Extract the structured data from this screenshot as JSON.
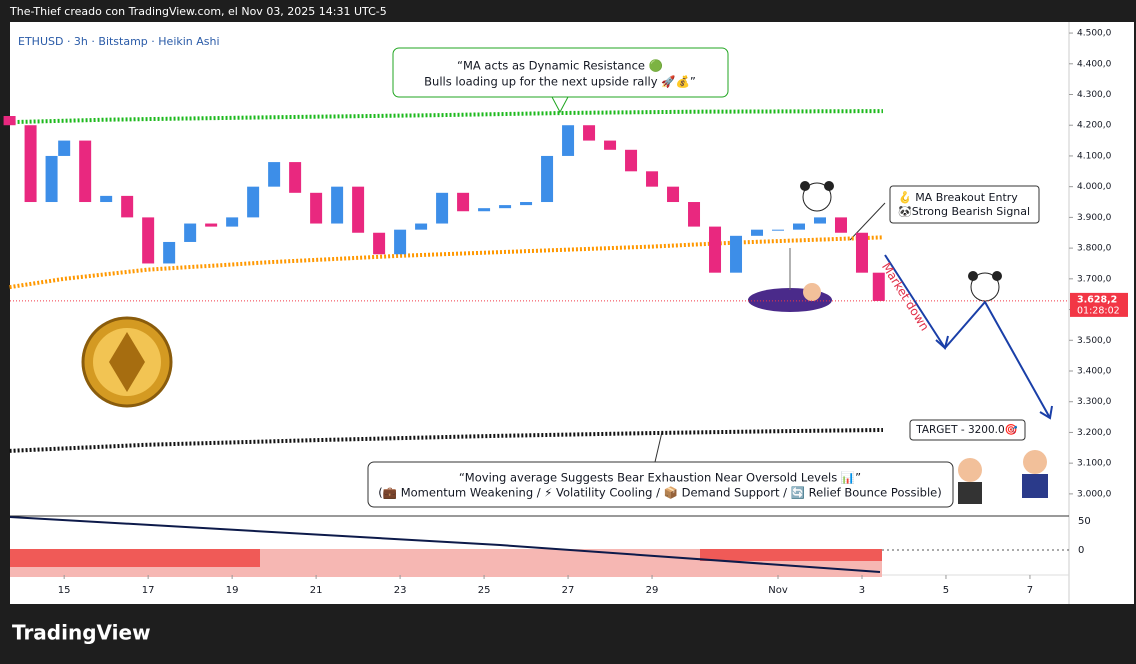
{
  "header": "The-Thief creado con TradingView.com, el Nov 03, 2025 14:31 UTC-5",
  "footer": "TradingView",
  "chart_data": {
    "type": "candlestick",
    "title": "ETHUSD · 3h · Bitstamp · Heikin Ashi",
    "x": [
      13.7,
      14.2,
      14.7,
      15,
      15.5,
      16,
      16.5,
      17,
      17.5,
      18,
      18.5,
      19,
      19.5,
      20,
      20.5,
      21,
      21.5,
      22,
      22.5,
      23,
      23.5,
      24,
      24.5,
      25,
      25.5,
      26,
      26.5,
      27,
      27.5,
      28,
      28.5,
      29,
      29.5,
      30,
      30.5,
      31,
      31.5,
      32,
      32.5,
      33,
      33.5,
      34,
      34.4
    ],
    "open": [
      4230,
      4200,
      3950,
      4100,
      4150,
      3950,
      3970,
      3900,
      3750,
      3820,
      3880,
      3870,
      3900,
      4000,
      4080,
      3980,
      3880,
      4000,
      3850,
      3780,
      3860,
      3880,
      3980,
      3920,
      3930,
      3940,
      3950,
      4100,
      4200,
      4150,
      4120,
      4050,
      4000,
      3950,
      3870,
      3720,
      3840,
      3860,
      3860,
      3880,
      3900,
      3850,
      3720
    ],
    "close": [
      4200,
      3950,
      4100,
      4150,
      3950,
      3970,
      3900,
      3750,
      3820,
      3880,
      3870,
      3900,
      4000,
      4080,
      3980,
      3880,
      4000,
      3850,
      3780,
      3860,
      3880,
      3980,
      3920,
      3930,
      3940,
      3950,
      4100,
      4200,
      4150,
      4120,
      4050,
      4000,
      3950,
      3870,
      3720,
      3840,
      3860,
      3860,
      3880,
      3900,
      3850,
      3720,
      3628
    ],
    "up_color": "#3d8ee8",
    "down_color": "#e9287f",
    "moving_averages": [
      {
        "color": "#1db91d",
        "x": [
          13.7,
          16,
          20,
          24,
          27,
          30,
          34.5
        ],
        "values": [
          4210,
          4218,
          4226,
          4233,
          4240,
          4244,
          4246
        ]
      },
      {
        "color": "#ff9800",
        "x": [
          13.7,
          15,
          17,
          20,
          23,
          26,
          29,
          31,
          34.5
        ],
        "values": [
          3673,
          3700,
          3730,
          3755,
          3775,
          3790,
          3805,
          3818,
          3835
        ]
      },
      {
        "color": "#111111",
        "x": [
          13.7,
          17,
          21,
          25,
          29,
          32,
          34.5
        ],
        "values": [
          3140,
          3160,
          3175,
          3188,
          3198,
          3204,
          3208
        ]
      }
    ],
    "last_price": {
      "value": 3628.2,
      "label": "3.628,2"
    },
    "countdown": "01:28:02",
    "xlim": [
      13.71,
      38.93
    ],
    "ylim": [
      2928,
      4536
    ],
    "xticks": [
      15,
      17,
      19,
      21,
      23,
      25,
      27,
      29,
      {
        "value": 32,
        "label": "Nov"
      },
      {
        "value": 34,
        "label": "3"
      },
      {
        "value": 36,
        "label": "5"
      },
      {
        "value": 38,
        "label": "7"
      }
    ],
    "yticks": [
      {
        "value": 3000,
        "label": "3.000,0"
      },
      {
        "value": 3100,
        "label": "3.100,0"
      },
      {
        "value": 3200,
        "label": "3.200,0"
      },
      {
        "value": 3300,
        "label": "3.300,0"
      },
      {
        "value": 3400,
        "label": "3.400,0"
      },
      {
        "value": 3500,
        "label": "3.500,0"
      },
      {
        "value": 3600,
        "label": "3.600,0"
      },
      {
        "value": 3700,
        "label": "3.700,0"
      },
      {
        "value": 3800,
        "label": "3.800,0"
      },
      {
        "value": 3900,
        "label": "3.900,0"
      },
      {
        "value": 4000,
        "label": "4.000,0"
      },
      {
        "value": 4100,
        "label": "4.100,0"
      },
      {
        "value": 4200,
        "label": "4.200,0"
      },
      {
        "value": 4300,
        "label": "4.300,0"
      },
      {
        "value": 4400,
        "label": "4.400,0"
      },
      {
        "value": 4500,
        "label": "4.500,0"
      }
    ],
    "annotations": {
      "resistance": [
        "“MA acts as Dynamic Resistance 🟢",
        "Bulls loading up for the next upside rally 🚀💰”"
      ],
      "entry": [
        "🪝 MA Breakout Entry",
        "🐼Strong Bearish Signal"
      ],
      "market_down": "Market down",
      "target": "TARGET - 3200.0🎯",
      "exhaustion": [
        "“Moving average Suggests Bear Exhaustion Near Oversold Levels 📊”",
        "(💼 Momentum Weakening / ⚡ Volatility Cooling / 📦 Demand Support / 🔄 Relief Bounce Possible)"
      ]
    },
    "lower_pane": {
      "yticks": [
        50,
        0
      ]
    }
  }
}
